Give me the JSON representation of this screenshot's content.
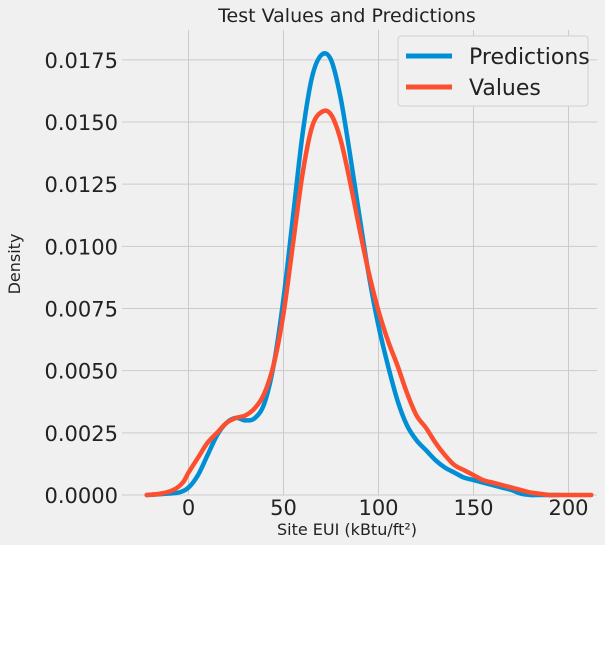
{
  "chart_data": {
    "type": "line",
    "title": "Test Values and Predictions",
    "xlabel": "Site EUI (kBtu/ft²)",
    "ylabel": "Density",
    "xlim": [
      -35,
      215
    ],
    "ylim": [
      0,
      0.0187
    ],
    "x_ticks": [
      0,
      50,
      100,
      150,
      200
    ],
    "y_ticks": [
      0.0,
      0.0025,
      0.005,
      0.0075,
      0.01,
      0.0125,
      0.015,
      0.0175
    ],
    "x_tick_labels": [
      "0",
      "50",
      "100",
      "150",
      "200"
    ],
    "y_tick_labels": [
      "0.0000",
      "0.0025",
      "0.0050",
      "0.0075",
      "0.0100",
      "0.0125",
      "0.0150",
      "0.0175"
    ],
    "grid": true,
    "legend_position": "top-right",
    "series": [
      {
        "name": "Predictions",
        "color": "#008fd5",
        "x": [
          -22,
          -12,
          -5,
          0,
          5,
          10,
          15,
          20,
          25,
          30,
          35,
          40,
          45,
          50,
          55,
          60,
          65,
          70,
          75,
          80,
          85,
          90,
          95,
          100,
          105,
          110,
          115,
          120,
          125,
          130,
          135,
          140,
          145,
          150,
          155,
          160,
          165,
          170,
          175,
          180,
          185,
          190,
          195
        ],
        "y": [
          0.0,
          5e-05,
          0.0001,
          0.0003,
          0.0008,
          0.0016,
          0.0024,
          0.0029,
          0.0031,
          0.003,
          0.0031,
          0.0037,
          0.0053,
          0.0079,
          0.0112,
          0.0145,
          0.0168,
          0.0177,
          0.0175,
          0.016,
          0.0137,
          0.0112,
          0.0088,
          0.0068,
          0.0052,
          0.0038,
          0.0028,
          0.0022,
          0.0018,
          0.0014,
          0.0011,
          0.0009,
          0.0007,
          0.0006,
          0.0005,
          0.0004,
          0.0003,
          0.0002,
          5e-05,
          0.0,
          0.0,
          0.0,
          0.0
        ]
      },
      {
        "name": "Values",
        "color": "#fc4f30",
        "x": [
          -22,
          -15,
          -8,
          -3,
          0,
          5,
          10,
          15,
          20,
          25,
          30,
          35,
          40,
          45,
          50,
          55,
          60,
          65,
          70,
          75,
          80,
          85,
          90,
          95,
          100,
          105,
          110,
          115,
          120,
          125,
          130,
          135,
          140,
          145,
          150,
          155,
          160,
          165,
          170,
          175,
          180,
          185,
          190,
          195,
          200,
          205,
          212
        ],
        "y": [
          0.0,
          5e-05,
          0.0002,
          0.0005,
          0.0009,
          0.0015,
          0.0021,
          0.0025,
          0.0029,
          0.0031,
          0.0032,
          0.0035,
          0.0041,
          0.0053,
          0.0073,
          0.0101,
          0.0129,
          0.0148,
          0.0154,
          0.0153,
          0.0143,
          0.0126,
          0.0107,
          0.0089,
          0.0074,
          0.0062,
          0.0052,
          0.0041,
          0.0032,
          0.0027,
          0.0021,
          0.0016,
          0.0012,
          0.001,
          0.0008,
          0.0006,
          0.0005,
          0.0004,
          0.0003,
          0.0002,
          0.0001,
          5e-05,
          0.0,
          0.0,
          0.0,
          0.0,
          0.0
        ]
      }
    ]
  }
}
